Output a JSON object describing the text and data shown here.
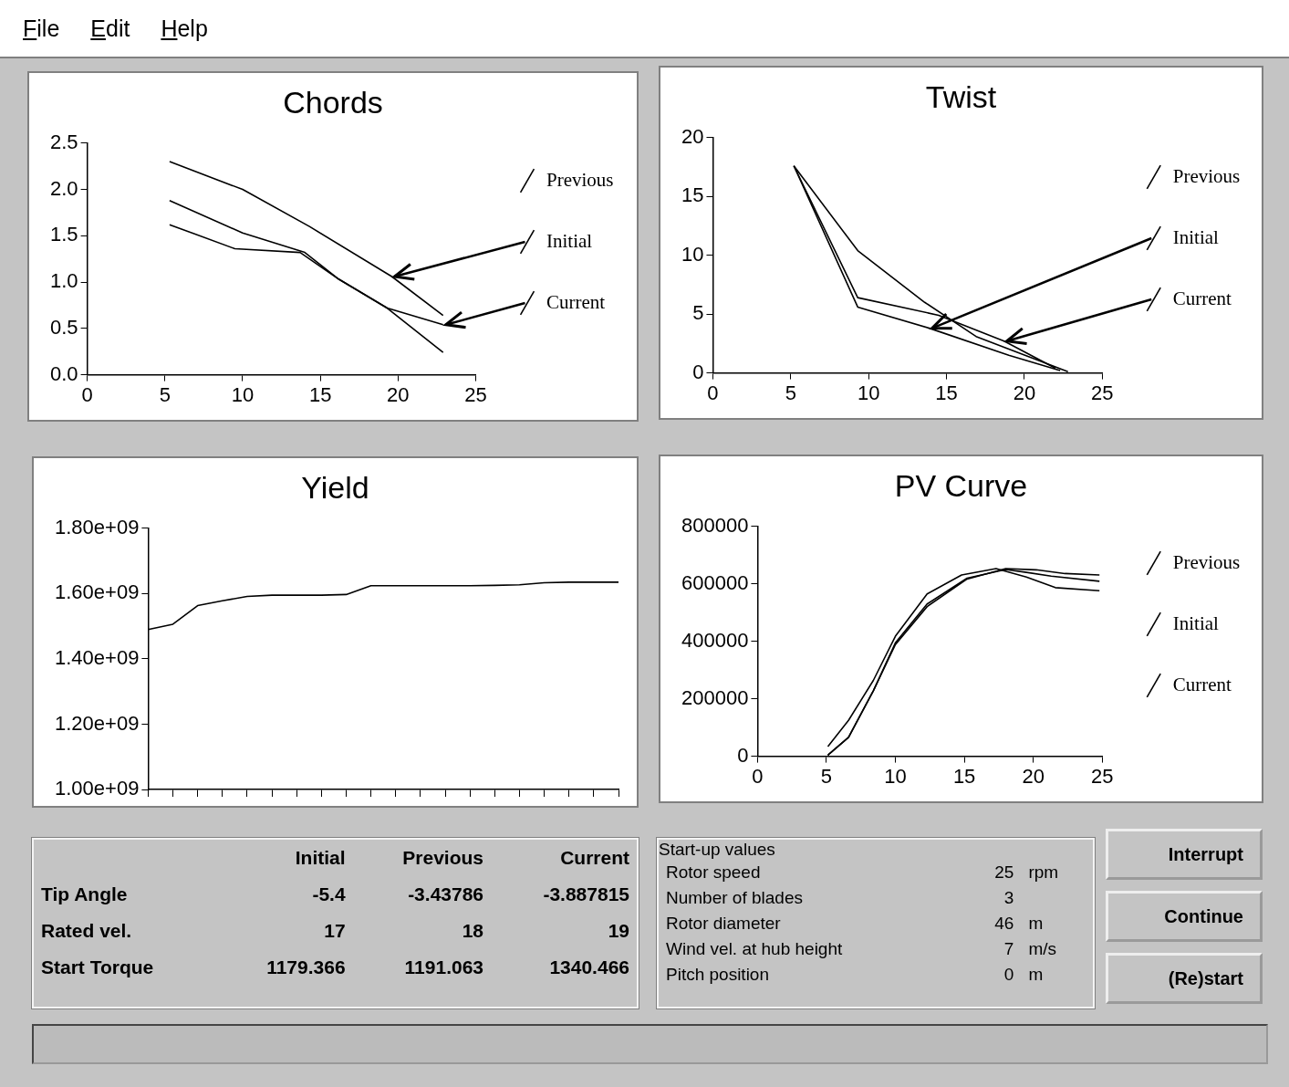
{
  "chart_data": [
    {
      "type": "other",
      "annotations": [
        "File",
        "Edit",
        "Help"
      ]
    },
    {
      "type": "line",
      "title": "Chords",
      "xlim": [
        0,
        25
      ],
      "xticks": [
        0,
        5,
        10,
        15,
        20,
        25
      ],
      "ylim": [
        0,
        2.5
      ],
      "yticks": [
        {
          "value": 0,
          "label": "0.0"
        },
        0.5,
        {
          "value": 1,
          "label": "1.0"
        },
        1.5,
        {
          "value": 2,
          "label": "2.0"
        },
        2.5
      ],
      "legend": "right",
      "marker": "none",
      "line_style": "solid",
      "series": [
        {
          "name": "Previous",
          "color": "#000000",
          "x": [
            5.3,
            9.5,
            13.7,
            16.2,
            19.3,
            22.9
          ],
          "values": [
            1.62,
            1.36,
            1.32,
            1.03,
            0.72,
            0.24
          ]
        },
        {
          "name": "Initial",
          "color": "#000000",
          "x": [
            5.3,
            10,
            14.3,
            19.6,
            22.9
          ],
          "values": [
            2.3,
            2.0,
            1.6,
            1.06,
            0.64
          ]
        },
        {
          "name": "Current",
          "color": "#000000",
          "x": [
            5.3,
            10,
            14,
            16.2,
            19.3,
            22.9
          ],
          "values": [
            1.88,
            1.53,
            1.32,
            1.03,
            0.72,
            0.54
          ]
        }
      ]
    },
    {
      "type": "line",
      "title": "Twist",
      "xlim": [
        0,
        25
      ],
      "xticks": [
        0,
        5,
        10,
        15,
        20,
        25
      ],
      "ylim": [
        0,
        20
      ],
      "yticks": [
        0,
        5,
        10,
        15,
        20
      ],
      "legend": "right",
      "marker": "none",
      "line_style": "solid",
      "series": [
        {
          "name": "Previous",
          "color": "#000000",
          "x": [
            5.2,
            9.3,
            13.6,
            16.9,
            22.8
          ],
          "values": [
            17.6,
            10.4,
            6.0,
            3.1,
            0.1
          ]
        },
        {
          "name": "Initial",
          "color": "#000000",
          "x": [
            5.2,
            9.3,
            13.9,
            19,
            22.3
          ],
          "values": [
            17.6,
            5.6,
            3.8,
            1.5,
            0.2
          ]
        },
        {
          "name": "Current",
          "color": "#000000",
          "x": [
            5.2,
            9.3,
            14.5,
            18.7,
            22
          ],
          "values": [
            17.6,
            6.4,
            4.9,
            2.7,
            0.4
          ]
        }
      ]
    },
    {
      "type": "line",
      "title": "Yield",
      "categories": [
        null,
        null,
        null,
        null,
        null,
        null,
        null,
        null,
        null,
        null,
        null,
        null,
        null,
        null,
        null,
        null,
        null,
        null,
        null,
        null
      ],
      "ylim": [
        1000000000,
        1800000000
      ],
      "yticks": [
        {
          "value": 1000000000,
          "label": "1.00e+09"
        },
        {
          "value": 1200000000,
          "label": "1.20e+09"
        },
        {
          "value": 1400000000,
          "label": "1.40e+09"
        },
        {
          "value": 1600000000,
          "label": "1.60e+09"
        },
        {
          "value": 1800000000,
          "label": "1.80e+09"
        }
      ],
      "tick_labels": "y",
      "marker": "none",
      "line_style": "solid",
      "color": "#000000",
      "values": [
        1490000000,
        1506000000,
        1563000000,
        1578000000,
        1591000000,
        1595000000,
        1595000000,
        1595000000,
        1597000000,
        1624000000,
        1624000000,
        1624000000,
        1624000000,
        1624000000,
        1625000000,
        1627000000,
        1633000000,
        1635000000,
        1635000000,
        1635000000
      ]
    },
    {
      "type": "line",
      "title": "PV Curve",
      "xlim": [
        0,
        25
      ],
      "xticks": [
        0,
        5,
        10,
        15,
        20,
        25
      ],
      "ylim": [
        0,
        800000
      ],
      "yticks": [
        0,
        200000,
        400000,
        600000,
        800000
      ],
      "legend": "right",
      "marker": "none",
      "line_style": "solid",
      "series": [
        {
          "name": "Previous",
          "color": "#000000",
          "x": [
            5.1,
            6.6,
            8.4,
            10,
            12.3,
            15.2,
            18,
            20.2,
            22.3,
            24.8
          ],
          "values": [
            4000,
            66000,
            228000,
            389000,
            521000,
            617000,
            653000,
            649000,
            636000,
            631000
          ]
        },
        {
          "name": "Initial",
          "color": "#000000",
          "x": [
            5.1,
            6.6,
            8.4,
            10,
            12.3,
            15.2,
            18,
            19.5,
            21.3,
            24.8
          ],
          "values": [
            4000,
            66000,
            228000,
            395000,
            530000,
            620000,
            650000,
            640000,
            627000,
            609000
          ]
        },
        {
          "name": "Current",
          "color": "#000000",
          "x": [
            5.1,
            6.6,
            8.4,
            10,
            12.3,
            14.8,
            17.3,
            19.5,
            21.6,
            24.8
          ],
          "values": [
            34000,
            125000,
            264000,
            418000,
            565000,
            631000,
            653000,
            624000,
            587000,
            576000
          ]
        }
      ]
    },
    {
      "type": "other",
      "categories": [
        "Initial",
        "Previous",
        "Current"
      ],
      "y_categories": [
        "Tip Angle",
        "Rated vel.",
        "Start Torque"
      ],
      "cell_labels": [
        [
          "-5.4",
          "-3.43786",
          "-3.887815"
        ],
        [
          "17",
          "18",
          "19"
        ],
        [
          "1179.366",
          "1191.063",
          "1340.466"
        ]
      ]
    },
    {
      "type": "other",
      "title": "Start-up values",
      "y_categories": [
        "Rotor speed",
        "Number of blades",
        "Rotor diameter",
        "Wind vel. at hub height",
        "Pitch position"
      ],
      "cell_labels": [
        [
          "25",
          "rpm"
        ],
        [
          "3",
          null
        ],
        [
          "46",
          "m"
        ],
        [
          "7",
          "m/s"
        ],
        [
          "0",
          "m"
        ]
      ]
    },
    {
      "type": "other",
      "annotations": [
        "Interrupt",
        "Continue",
        "(Re)start"
      ]
    }
  ]
}
